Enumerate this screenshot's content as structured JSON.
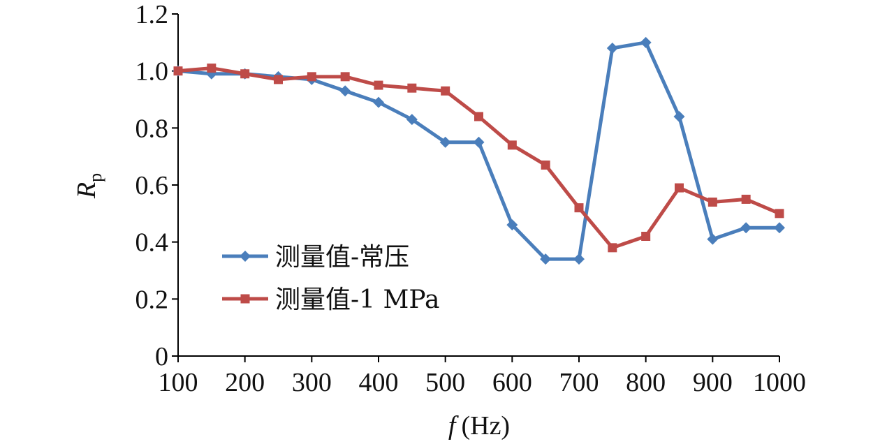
{
  "chart_data": {
    "type": "line",
    "xlabel": {
      "var": "f",
      "unit": "(Hz)"
    },
    "ylabel": {
      "var": "R",
      "sub": "p"
    },
    "xlim": [
      100,
      1000
    ],
    "ylim": [
      0,
      1.2
    ],
    "xticks": [
      100,
      200,
      300,
      400,
      500,
      600,
      700,
      800,
      900,
      1000
    ],
    "yticks": [
      0,
      0.2,
      0.4,
      0.6,
      0.8,
      1.0,
      1.2
    ],
    "ytick_labels": [
      "0",
      "0.2",
      "0.4",
      "0.6",
      "0.8",
      "1.0",
      "1.2"
    ],
    "x": [
      100,
      150,
      200,
      250,
      300,
      350,
      400,
      450,
      500,
      550,
      600,
      650,
      700,
      750,
      800,
      850,
      900,
      950,
      1000
    ],
    "series": [
      {
        "name": "测量值-常压",
        "color": "#4a7ebb",
        "marker": "diamond",
        "values": [
          1.0,
          0.99,
          0.99,
          0.98,
          0.97,
          0.93,
          0.89,
          0.83,
          0.75,
          0.75,
          0.46,
          0.34,
          0.34,
          1.08,
          1.1,
          0.84,
          0.41,
          0.45,
          0.45
        ]
      },
      {
        "name": "测量值-1 MPa",
        "color": "#be4b48",
        "marker": "square",
        "values": [
          1.0,
          1.01,
          0.99,
          0.97,
          0.98,
          0.98,
          0.95,
          0.94,
          0.93,
          0.84,
          0.74,
          0.67,
          0.52,
          0.38,
          0.42,
          0.59,
          0.54,
          0.55,
          0.5
        ]
      }
    ],
    "legend_position": "lower-left",
    "grid": false
  }
}
